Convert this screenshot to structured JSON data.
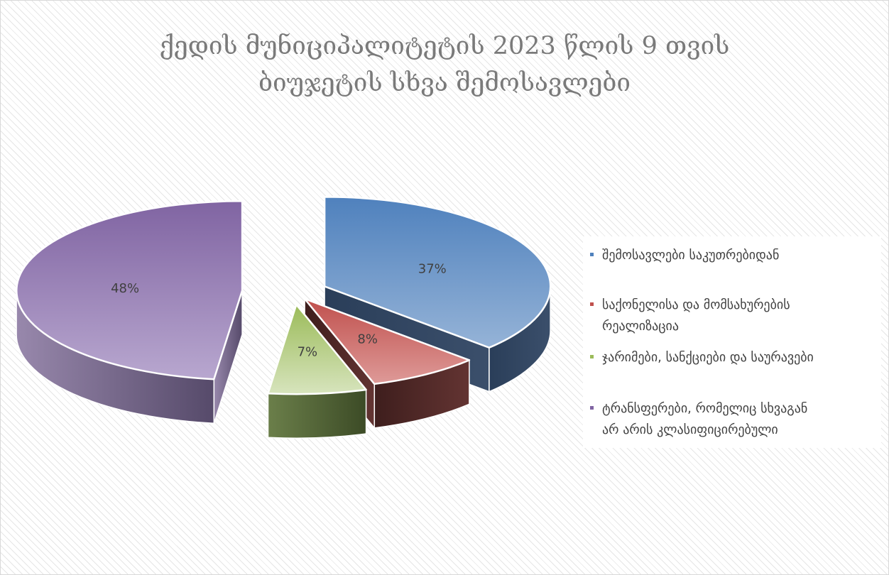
{
  "chart_data": {
    "type": "pie",
    "title_lines": [
      "ქედის მუნიციპალიტეტის 2023 წლის 9 თვის",
      "ბიუჯეტის სხვა შემოსავლები"
    ],
    "categories": [
      "შემოსავლები საკუთრებიდან",
      "საქონელისა და მომსახურების რეალიზაცია",
      "ჯარიმები, სანქციები და საურავები",
      "ტრანსფერები, რომელიც სხვაგან არ არის კლასიფიცირებული"
    ],
    "legend_lines": [
      [
        "შემოსავლები საკუთრებიდან"
      ],
      [
        "საქონელისა და მომსახურების",
        "რეალიზაცია"
      ],
      [
        "ჯარიმები, სანქციები და საურავები"
      ],
      [
        "ტრანსფერები, რომელიც სხვაგან",
        "არ არის კლასიფიცირებული"
      ]
    ],
    "values": [
      37,
      8,
      7,
      48
    ],
    "data_labels": [
      "37%",
      "8%",
      "7%",
      "48%"
    ],
    "colors": [
      "#4f81bd",
      "#c0504d",
      "#9bbb59",
      "#8064a2"
    ],
    "style": "3d-exploded",
    "legend_position": "right",
    "grid": false
  }
}
